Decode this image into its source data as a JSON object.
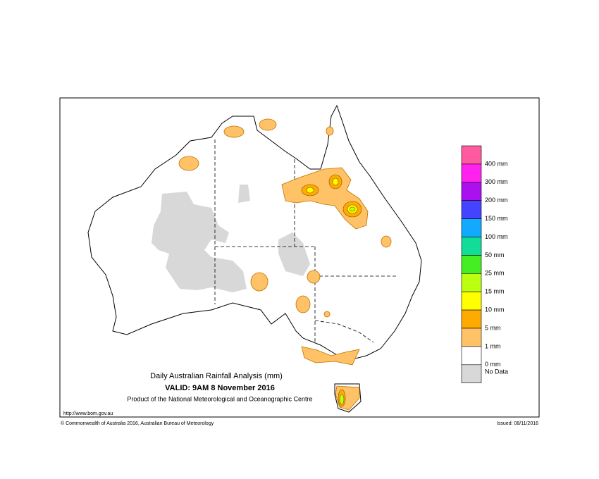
{
  "header": {
    "title": "Daily Australian Rainfall Analysis (mm)",
    "valid": "VALID: 9AM  8 November 2016",
    "producer": "Product of the National Meteorological and Oceanographic Centre"
  },
  "footer": {
    "url": "http://www.bom.gov.au",
    "copyright": "© Commonwealth of Australia 2016, Australian Bureau of Meteorology",
    "issued": "Issued: 08/11/2016"
  },
  "legend": {
    "swatches": [
      "#ff5aa0",
      "#ff22ee",
      "#aa11ee",
      "#4444ff",
      "#11aaff",
      "#11dd99",
      "#44ee22",
      "#bbff11",
      "#ffff00",
      "#ffaa00",
      "#ffc266",
      "#ffffff",
      "#d8d8d8"
    ],
    "labels": [
      "400 mm",
      "300 mm",
      "200 mm",
      "150 mm",
      "100 mm",
      "50 mm",
      "25 mm",
      "15 mm",
      "10 mm",
      "5 mm",
      "1 mm",
      "0 mm",
      "No Data"
    ]
  }
}
